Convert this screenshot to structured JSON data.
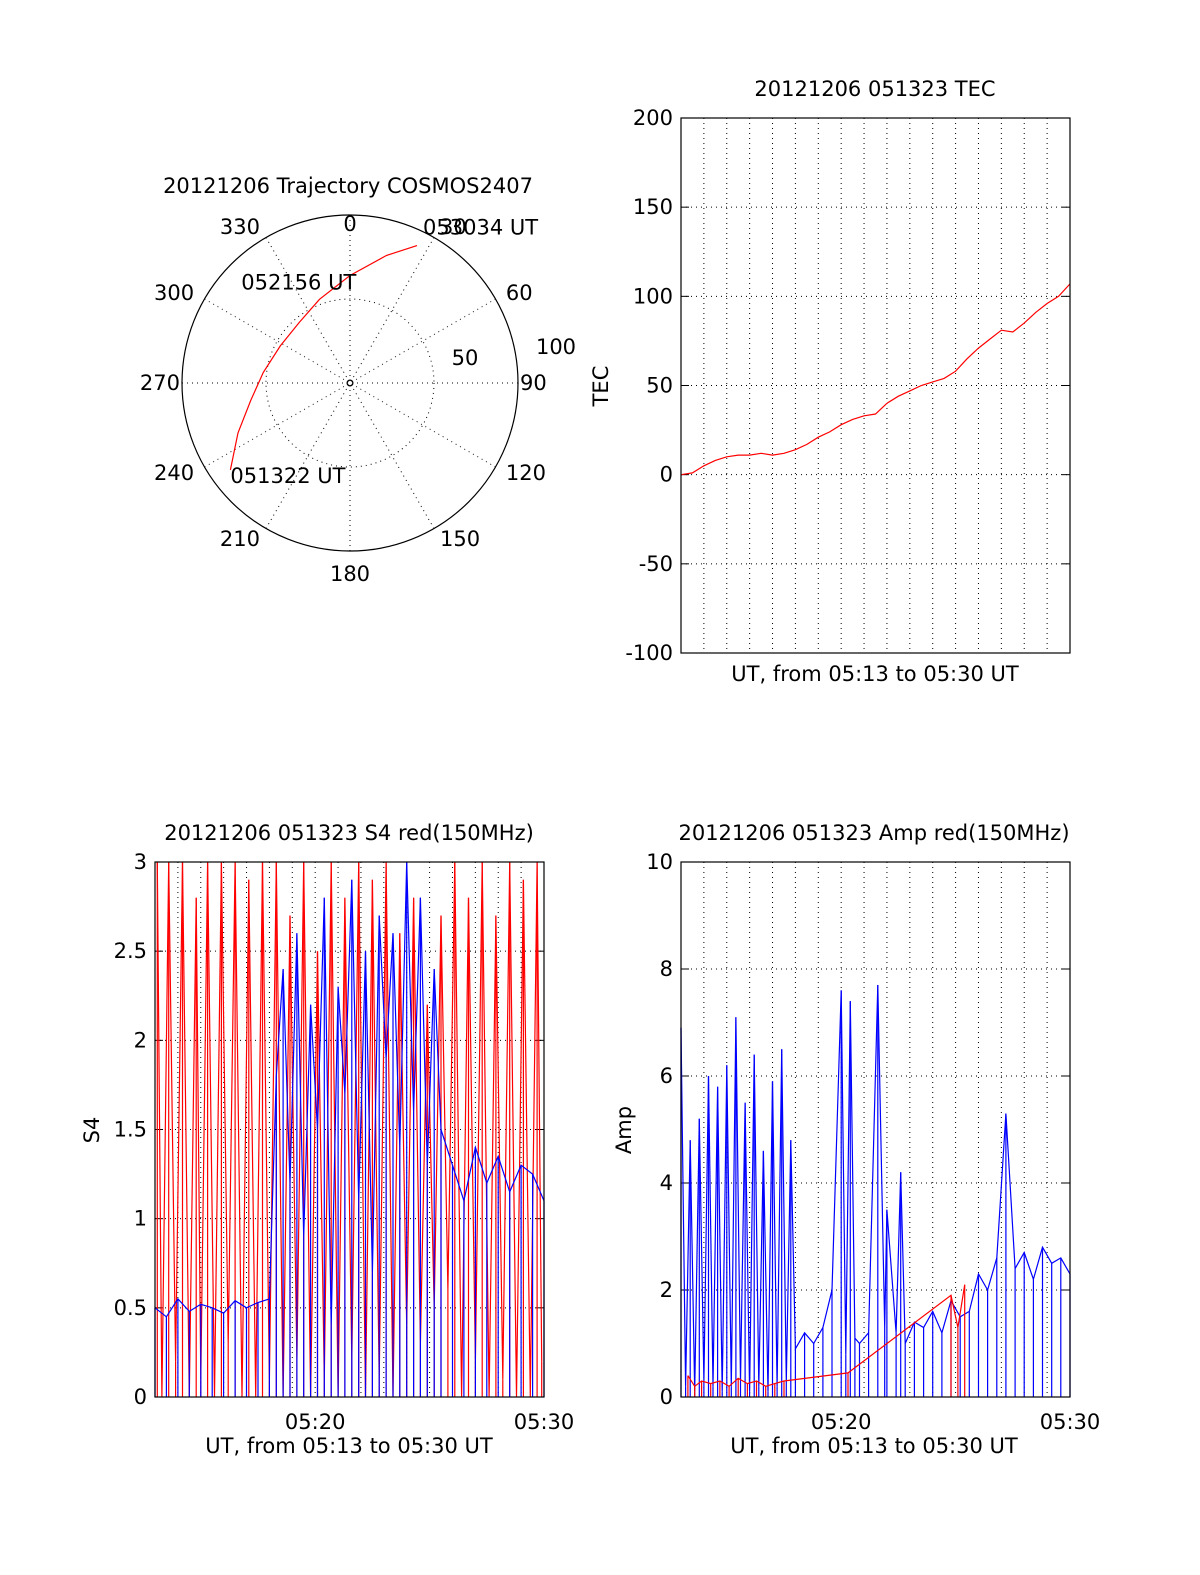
{
  "chart_data": [
    {
      "type": "polar",
      "title": "20121206 Trajectory COSMOS2407",
      "angle_labels": [
        "0",
        "30",
        "60",
        "90",
        "120",
        "150",
        "180",
        "210",
        "240",
        "270",
        "300",
        "330"
      ],
      "radial_labels": [
        "50",
        "100"
      ],
      "rlim": [
        0,
        100
      ],
      "grid": true,
      "colors": {
        "trajectory": "#ff0000",
        "frame": "#000000"
      },
      "trajectory": {
        "points": [
          {
            "azimuth": 234,
            "zenith": 88
          },
          {
            "azimuth": 246,
            "zenith": 73
          },
          {
            "azimuth": 260,
            "zenith": 60
          },
          {
            "azimuth": 277,
            "zenith": 52
          },
          {
            "azimuth": 298,
            "zenith": 47
          },
          {
            "azimuth": 320,
            "zenith": 47
          },
          {
            "azimuth": 340,
            "zenith": 53
          },
          {
            "azimuth": 0,
            "zenith": 64
          },
          {
            "azimuth": 16,
            "zenith": 79
          },
          {
            "azimuth": 26,
            "zenith": 91
          }
        ],
        "annotations": [
          {
            "text": "051322 UT",
            "azimuth": 234,
            "zenith": 88
          },
          {
            "text": "052156 UT",
            "azimuth": 320,
            "zenith": 47
          },
          {
            "text": "053034 UT",
            "azimuth": 26,
            "zenith": 91
          }
        ]
      }
    },
    {
      "type": "line",
      "title": "20121206 051323 TEC",
      "ylabel": "TEC",
      "xlabel": "UT, from 05:13 to 05:30 UT",
      "xlim": [
        0,
        17
      ],
      "ylim": [
        -100,
        200
      ],
      "yticks": [
        "-100",
        "-50",
        "0",
        "50",
        "100",
        "150",
        "200"
      ],
      "xticks": [],
      "grid": true,
      "series": [
        {
          "color": "#ff0000",
          "x": [
            0,
            0.5,
            1,
            1.5,
            2,
            2.5,
            3,
            3.5,
            4,
            4.5,
            5,
            5.5,
            6,
            6.5,
            7,
            7.5,
            8,
            8.5,
            9,
            9.5,
            10,
            10.5,
            11,
            11.5,
            12,
            12.5,
            13,
            13.5,
            14,
            14.5,
            15,
            15.5,
            16,
            16.5,
            17
          ],
          "y": [
            0,
            1,
            5,
            8,
            10,
            11,
            11,
            12,
            11,
            12,
            14,
            17,
            21,
            24,
            28,
            31,
            33,
            34,
            40,
            44,
            47,
            50,
            52,
            54,
            58,
            65,
            71,
            76,
            81,
            80,
            85,
            91,
            96,
            100,
            107
          ]
        }
      ]
    },
    {
      "type": "line",
      "title": "20121206 051323 S4 red(150MHz)",
      "ylabel": "S4",
      "xlabel": "UT, from 05:13 to 05:30 UT",
      "xlim": [
        0,
        17
      ],
      "ylim": [
        0,
        3
      ],
      "yticks": [
        "0",
        "0.5",
        "1",
        "1.5",
        "2",
        "2.5",
        "3"
      ],
      "xticks": [
        {
          "label": "05:20",
          "x": 7
        },
        {
          "label": "05:30",
          "x": 17
        }
      ],
      "grid": true,
      "series": [
        {
          "color": "#ff0000",
          "x": [
            0.1,
            0.3,
            0.6,
            0.9,
            1.2,
            1.5,
            1.8,
            2.0,
            2.3,
            2.6,
            2.9,
            3.2,
            3.5,
            3.8,
            4.1,
            4.4,
            4.7,
            5.0,
            5.3,
            5.6,
            5.9,
            6.2,
            6.5,
            6.8,
            7.1,
            7.4,
            7.7,
            8.0,
            8.3,
            8.6,
            8.9,
            9.2,
            9.5,
            9.8,
            10.1,
            10.4,
            10.7,
            11.0,
            11.3,
            11.6,
            11.9,
            12.2,
            12.5,
            12.8,
            13.1,
            13.4,
            13.7,
            14.0,
            14.3,
            14.6,
            14.9,
            15.2,
            15.5,
            15.8,
            16.1,
            16.4,
            16.7,
            16.9
          ],
          "y": [
            3.0,
            0.0,
            3.0,
            0.2,
            3.0,
            0.0,
            2.8,
            0.1,
            3.0,
            0.0,
            3.0,
            0.3,
            3.0,
            0.0,
            2.9,
            0.0,
            3.0,
            0.1,
            3.0,
            0.0,
            2.7,
            0.2,
            3.0,
            0.0,
            2.5,
            0.1,
            3.0,
            0.0,
            2.8,
            0.2,
            3.0,
            0.0,
            2.9,
            0.1,
            3.0,
            0.0,
            2.6,
            0.4,
            2.8,
            0.3,
            2.2,
            0.5,
            2.7,
            0.6,
            3.0,
            0.0,
            2.8,
            0.2,
            3.0,
            0.0,
            2.7,
            0.1,
            3.0,
            0.0,
            2.9,
            0.0,
            3.0,
            0.2
          ]
        },
        {
          "color": "#0000ff",
          "x": [
            0,
            0.5,
            1,
            1.5,
            2,
            2.5,
            3,
            3.5,
            4,
            4.5,
            5,
            5.3,
            5.6,
            5.9,
            6.2,
            6.5,
            6.8,
            7.1,
            7.4,
            7.7,
            8.0,
            8.3,
            8.6,
            8.9,
            9.2,
            9.5,
            9.8,
            10.1,
            10.4,
            10.7,
            11.0,
            11.3,
            11.6,
            11.9,
            12.2,
            12.5,
            13,
            13.5,
            14,
            14.5,
            15,
            15.5,
            16,
            16.5,
            17
          ],
          "y": [
            0.5,
            0.45,
            0.55,
            0.48,
            0.52,
            0.5,
            0.47,
            0.54,
            0.5,
            0.53,
            0.55,
            1.8,
            2.4,
            1.2,
            2.6,
            0.9,
            2.2,
            1.5,
            2.8,
            0.4,
            2.3,
            1.7,
            2.9,
            1.1,
            2.5,
            0.7,
            2.7,
            1.9,
            2.6,
            1.4,
            3.0,
            1.6,
            2.8,
            1.3,
            2.4,
            1.5,
            1.3,
            1.1,
            1.4,
            1.2,
            1.35,
            1.15,
            1.3,
            1.25,
            1.1
          ]
        }
      ]
    },
    {
      "type": "line",
      "title": "20121206 051323 Amp red(150MHz)",
      "ylabel": "Amp",
      "xlabel": "UT, from 05:13 to 05:30 UT",
      "xlim": [
        0,
        17
      ],
      "ylim": [
        0,
        10
      ],
      "yticks": [
        "0",
        "2",
        "4",
        "6",
        "8",
        "10"
      ],
      "xticks": [
        {
          "label": "05:20",
          "x": 7
        },
        {
          "label": "05:30",
          "x": 17
        }
      ],
      "grid": true,
      "series": [
        {
          "color": "#0000ff",
          "x": [
            0,
            0.2,
            0.4,
            0.6,
            0.8,
            1.0,
            1.2,
            1.4,
            1.6,
            1.8,
            2.0,
            2.2,
            2.4,
            2.6,
            2.8,
            3.0,
            3.2,
            3.4,
            3.6,
            3.8,
            4.0,
            4.2,
            4.4,
            4.6,
            4.8,
            5.0,
            5.4,
            5.8,
            6.2,
            6.6,
            7.0,
            7.2,
            7.4,
            7.6,
            7.8,
            8.2,
            8.6,
            8.9,
            9.0,
            9.4,
            9.6,
            9.8,
            10.2,
            10.6,
            11.0,
            11.4,
            11.8,
            12.2,
            12.6,
            13.0,
            13.4,
            13.8,
            14.2,
            14.6,
            15.0,
            15.4,
            15.8,
            16.2,
            16.6,
            17.0
          ],
          "y": [
            6.9,
            0.2,
            4.8,
            0.1,
            5.2,
            0.3,
            6.0,
            0.2,
            5.8,
            0.1,
            6.2,
            0.2,
            7.1,
            0.3,
            5.5,
            0.1,
            6.4,
            0.2,
            4.6,
            0.1,
            5.9,
            0.2,
            6.5,
            0.3,
            4.8,
            0.9,
            1.2,
            1.0,
            1.3,
            2.0,
            7.6,
            0.8,
            7.4,
            1.1,
            1.0,
            1.2,
            7.7,
            1.3,
            3.5,
            1.2,
            4.2,
            1.0,
            1.4,
            1.3,
            1.6,
            1.2,
            1.8,
            1.5,
            1.6,
            2.3,
            2.0,
            2.6,
            5.3,
            2.4,
            2.7,
            2.2,
            2.8,
            2.5,
            2.6,
            2.3
          ]
        },
        {
          "color": "#ff0000",
          "x": [
            0.3,
            0.6,
            0.9,
            1.3,
            1.7,
            2.1,
            2.5,
            2.9,
            3.3,
            3.7,
            4.1,
            4.5,
            7.3,
            11.8,
            12.1,
            12.4
          ],
          "y": [
            0.4,
            0.2,
            0.3,
            0.25,
            0.3,
            0.2,
            0.35,
            0.25,
            0.3,
            0.2,
            0.25,
            0.3,
            0.45,
            1.9,
            1.3,
            2.1
          ]
        }
      ]
    }
  ]
}
